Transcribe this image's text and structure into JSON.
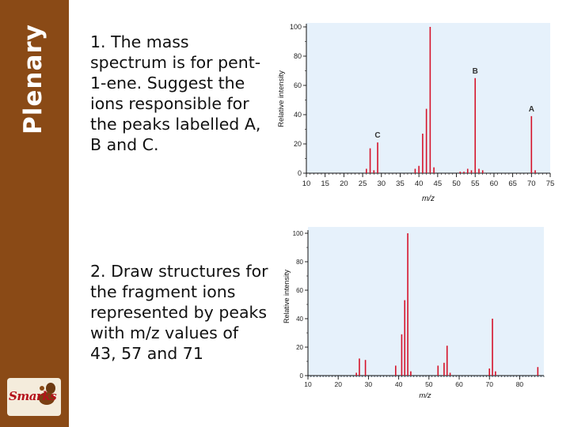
{
  "sidebar": {
    "title": "Plenary",
    "logo_text": "Smarks"
  },
  "questions": [
    {
      "text": "1. The mass spectrum is for pent-1-ene. Suggest the ions responsible for the peaks labelled A, B and C."
    },
    {
      "text": "2. Draw structures for the fragment ions represented by peaks with m/z values of 43, 57 and 71"
    }
  ],
  "colors": {
    "sidebar": "#8a4a16",
    "peak": "#d5132a",
    "plot_bg": "#e6f1fb",
    "axis": "#111111"
  },
  "chart_data": [
    {
      "type": "bar",
      "title": "",
      "xlabel": "m/z",
      "ylabel": "Relative intensity",
      "xlim": [
        10,
        75
      ],
      "ylim": [
        0,
        100
      ],
      "x_ticks": [
        10,
        15,
        20,
        25,
        30,
        35,
        40,
        45,
        50,
        55,
        60,
        65,
        70,
        75
      ],
      "y_ticks": [
        0,
        20,
        40,
        60,
        80,
        100
      ],
      "grid": false,
      "peaks": [
        {
          "x": 26,
          "y": 3
        },
        {
          "x": 27,
          "y": 17
        },
        {
          "x": 28,
          "y": 2
        },
        {
          "x": 29,
          "y": 21,
          "label": "C"
        },
        {
          "x": 39,
          "y": 3
        },
        {
          "x": 40,
          "y": 5
        },
        {
          "x": 41,
          "y": 27
        },
        {
          "x": 42,
          "y": 44
        },
        {
          "x": 43,
          "y": 100
        },
        {
          "x": 44,
          "y": 4
        },
        {
          "x": 51,
          "y": 1
        },
        {
          "x": 52,
          "y": 1
        },
        {
          "x": 53,
          "y": 3
        },
        {
          "x": 54,
          "y": 2
        },
        {
          "x": 55,
          "y": 65,
          "label": "B"
        },
        {
          "x": 56,
          "y": 3
        },
        {
          "x": 57,
          "y": 2
        },
        {
          "x": 70,
          "y": 39,
          "label": "A"
        },
        {
          "x": 71,
          "y": 2
        }
      ]
    },
    {
      "type": "bar",
      "title": "",
      "xlabel": "m/z",
      "ylabel": "Relative intensity",
      "xlim": [
        10,
        88
      ],
      "ylim": [
        0,
        100
      ],
      "x_ticks": [
        10,
        20,
        30,
        40,
        50,
        60,
        70,
        80
      ],
      "y_ticks": [
        0,
        20,
        40,
        60,
        80,
        100
      ],
      "grid": false,
      "peaks": [
        {
          "x": 26,
          "y": 2
        },
        {
          "x": 27,
          "y": 12
        },
        {
          "x": 29,
          "y": 11
        },
        {
          "x": 39,
          "y": 7
        },
        {
          "x": 41,
          "y": 29
        },
        {
          "x": 42,
          "y": 53
        },
        {
          "x": 43,
          "y": 100
        },
        {
          "x": 44,
          "y": 3
        },
        {
          "x": 53,
          "y": 7
        },
        {
          "x": 55,
          "y": 9
        },
        {
          "x": 56,
          "y": 21
        },
        {
          "x": 57,
          "y": 2
        },
        {
          "x": 70,
          "y": 5
        },
        {
          "x": 71,
          "y": 40
        },
        {
          "x": 72,
          "y": 3
        },
        {
          "x": 86,
          "y": 6
        }
      ]
    }
  ]
}
